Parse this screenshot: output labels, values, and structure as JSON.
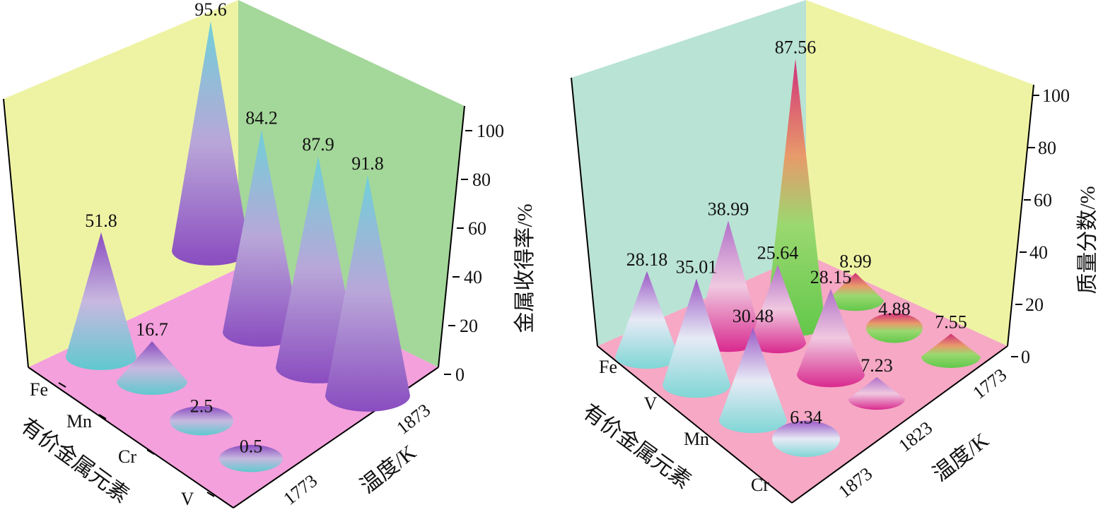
{
  "chart_data": [
    {
      "type": "3d-cone",
      "title": "",
      "zlabel": "金属收得率/%",
      "element_axis_label": "有价金属元素",
      "temperature_axis_label": "温度/K",
      "elements": [
        "Fe",
        "Mn",
        "Cr",
        "V"
      ],
      "temperatures": [
        "1773",
        "1873"
      ],
      "zlim": [
        0,
        100
      ],
      "zticks": [
        "0",
        "20",
        "40",
        "60",
        "80",
        "100"
      ],
      "series": [
        {
          "temperature": "1773",
          "values": [
            51.8,
            16.7,
            2.5,
            0.5
          ],
          "labels": [
            "51.8",
            "16.7",
            "2.5",
            "0.5"
          ]
        },
        {
          "temperature": "1873",
          "values": [
            95.6,
            84.2,
            87.9,
            91.8
          ],
          "labels": [
            "95.6",
            "84.2",
            "87.9",
            "91.8"
          ]
        }
      ],
      "colors": {
        "left_wall": "#eef3a4",
        "right_wall": "#a4d79a",
        "floor": "#f3a0dc",
        "cone_top": "#6fd0d8",
        "cone_base": "#8a4cc0"
      }
    },
    {
      "type": "3d-cone",
      "title": "",
      "zlabel": "质量分数/%",
      "element_axis_label": "有价金属元素",
      "temperature_axis_label": "温度/K",
      "elements": [
        "Fe",
        "V",
        "Mn",
        "Cr"
      ],
      "temperatures": [
        "1873",
        "1823",
        "1773"
      ],
      "zlim": [
        0,
        100
      ],
      "zticks": [
        "0",
        "20",
        "40",
        "60",
        "80",
        "100"
      ],
      "series": [
        {
          "temperature": "1873",
          "values": [
            28.18,
            35.01,
            30.48,
            6.34
          ],
          "labels": [
            "28.18",
            "35.01",
            "30.48",
            "6.34"
          ]
        },
        {
          "temperature": "1823",
          "values": [
            38.99,
            25.64,
            28.15,
            7.23
          ],
          "labels": [
            "38.99",
            "25.64",
            "28.15",
            "7.23"
          ]
        },
        {
          "temperature": "1773",
          "values": [
            87.56,
            8.99,
            4.88,
            7.55
          ],
          "labels": [
            "87.56",
            "8.99",
            "4.88",
            "7.55"
          ]
        }
      ],
      "colors": {
        "left_wall": "#b9e3d4",
        "right_wall": "#eef3a4",
        "floor": "#f6a8c4",
        "cone_1873": "#dde8f0",
        "cone_1823": "#e0409a",
        "cone_1773": "#7fd85a"
      }
    }
  ]
}
